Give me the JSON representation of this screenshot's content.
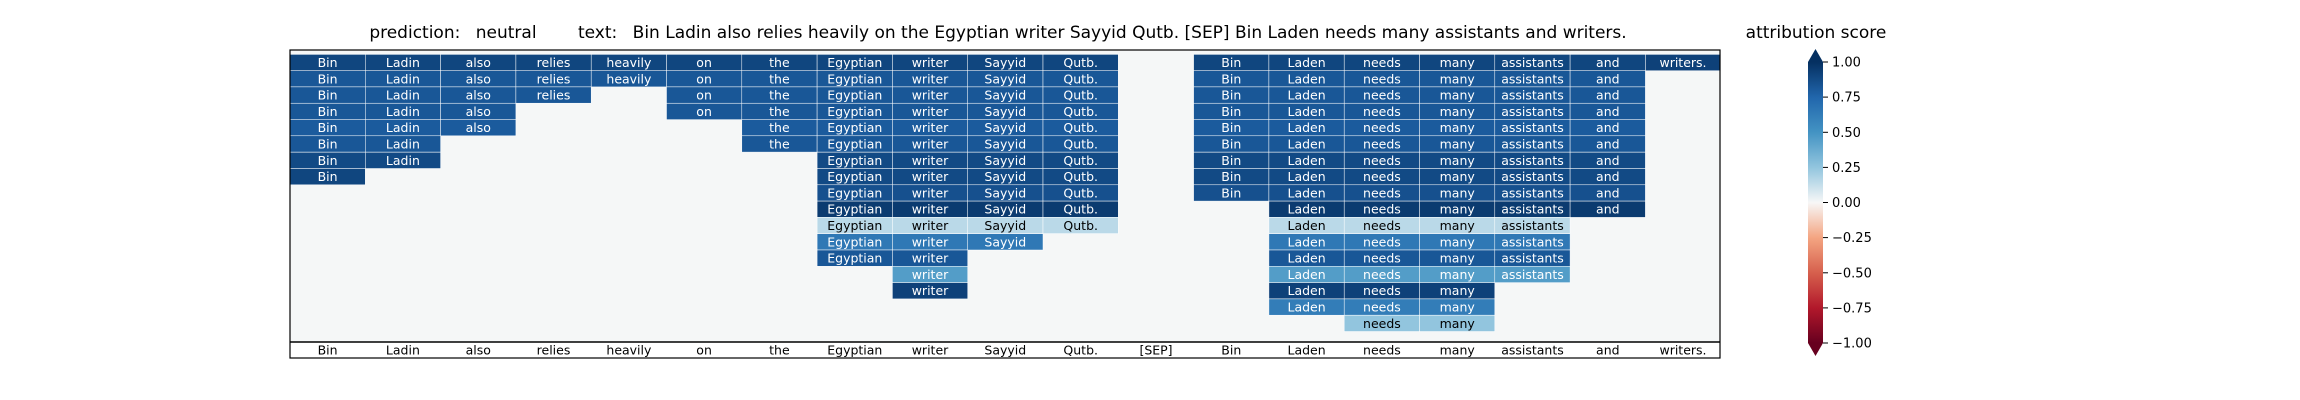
{
  "chart_data": {
    "type": "heatmap",
    "title": {
      "prediction_label": "prediction:",
      "prediction": "neutral",
      "text_label": "text:",
      "text": "Bin Ladin also relies heavily on the Egyptian writer Sayyid Qutb. [SEP] Bin Laden needs many assistants and writers."
    },
    "tokens": [
      "Bin",
      "Ladin",
      "also",
      "relies",
      "heavily",
      "on",
      "the",
      "Egyptian",
      "writer",
      "Sayyid",
      "Qutb.",
      "[SEP]",
      "Bin",
      "Laden",
      "needs",
      "many",
      "assistants",
      "and",
      "writers."
    ],
    "rows": [
      {
        "cells": [
          [
            0,
            0.9
          ],
          [
            1,
            0.9
          ],
          [
            2,
            0.9
          ],
          [
            3,
            0.9
          ],
          [
            4,
            0.9
          ],
          [
            5,
            0.9
          ],
          [
            6,
            0.9
          ],
          [
            7,
            0.9
          ],
          [
            8,
            0.9
          ],
          [
            9,
            0.9
          ],
          [
            10,
            0.9
          ],
          [
            12,
            0.9
          ],
          [
            13,
            0.9
          ],
          [
            14,
            0.9
          ],
          [
            15,
            0.9
          ],
          [
            16,
            0.9
          ],
          [
            17,
            0.9
          ],
          [
            18,
            0.92
          ]
        ]
      },
      {
        "cells": [
          [
            0,
            0.82
          ],
          [
            1,
            0.82
          ],
          [
            2,
            0.82
          ],
          [
            3,
            0.82
          ],
          [
            4,
            0.82
          ],
          [
            5,
            0.82
          ],
          [
            6,
            0.82
          ],
          [
            7,
            0.82
          ],
          [
            8,
            0.82
          ],
          [
            9,
            0.82
          ],
          [
            10,
            0.82
          ],
          [
            12,
            0.82
          ],
          [
            13,
            0.82
          ],
          [
            14,
            0.82
          ],
          [
            15,
            0.82
          ],
          [
            16,
            0.82
          ],
          [
            17,
            0.82
          ]
        ]
      },
      {
        "cells": [
          [
            0,
            0.82
          ],
          [
            1,
            0.82
          ],
          [
            2,
            0.82
          ],
          [
            3,
            0.82
          ],
          [
            5,
            0.82
          ],
          [
            6,
            0.82
          ],
          [
            7,
            0.82
          ],
          [
            8,
            0.82
          ],
          [
            9,
            0.82
          ],
          [
            10,
            0.82
          ],
          [
            12,
            0.82
          ],
          [
            13,
            0.82
          ],
          [
            14,
            0.82
          ],
          [
            15,
            0.82
          ],
          [
            16,
            0.82
          ],
          [
            17,
            0.82
          ]
        ]
      },
      {
        "cells": [
          [
            0,
            0.82
          ],
          [
            1,
            0.82
          ],
          [
            2,
            0.82
          ],
          [
            5,
            0.82
          ],
          [
            6,
            0.82
          ],
          [
            7,
            0.82
          ],
          [
            8,
            0.82
          ],
          [
            9,
            0.82
          ],
          [
            10,
            0.82
          ],
          [
            12,
            0.82
          ],
          [
            13,
            0.82
          ],
          [
            14,
            0.82
          ],
          [
            15,
            0.82
          ],
          [
            16,
            0.82
          ],
          [
            17,
            0.82
          ]
        ]
      },
      {
        "cells": [
          [
            0,
            0.8
          ],
          [
            1,
            0.8
          ],
          [
            2,
            0.8
          ],
          [
            6,
            0.8
          ],
          [
            7,
            0.8
          ],
          [
            8,
            0.8
          ],
          [
            9,
            0.8
          ],
          [
            10,
            0.8
          ],
          [
            12,
            0.8
          ],
          [
            13,
            0.8
          ],
          [
            14,
            0.8
          ],
          [
            15,
            0.8
          ],
          [
            16,
            0.8
          ],
          [
            17,
            0.8
          ]
        ]
      },
      {
        "cells": [
          [
            0,
            0.82
          ],
          [
            1,
            0.82
          ],
          [
            6,
            0.82
          ],
          [
            7,
            0.82
          ],
          [
            8,
            0.82
          ],
          [
            9,
            0.82
          ],
          [
            10,
            0.82
          ],
          [
            12,
            0.82
          ],
          [
            13,
            0.82
          ],
          [
            14,
            0.82
          ],
          [
            15,
            0.82
          ],
          [
            16,
            0.82
          ],
          [
            17,
            0.82
          ]
        ]
      },
      {
        "cells": [
          [
            0,
            0.88
          ],
          [
            1,
            0.88
          ],
          [
            7,
            0.88
          ],
          [
            8,
            0.88
          ],
          [
            9,
            0.88
          ],
          [
            10,
            0.88
          ],
          [
            12,
            0.88
          ],
          [
            13,
            0.88
          ],
          [
            14,
            0.88
          ],
          [
            15,
            0.88
          ],
          [
            16,
            0.88
          ],
          [
            17,
            0.88
          ]
        ]
      },
      {
        "cells": [
          [
            0,
            0.9
          ],
          [
            7,
            0.88
          ],
          [
            8,
            0.88
          ],
          [
            9,
            0.88
          ],
          [
            10,
            0.88
          ],
          [
            12,
            0.88
          ],
          [
            13,
            0.88
          ],
          [
            14,
            0.88
          ],
          [
            15,
            0.88
          ],
          [
            16,
            0.88
          ],
          [
            17,
            0.88
          ]
        ]
      },
      {
        "cells": [
          [
            7,
            0.85
          ],
          [
            8,
            0.85
          ],
          [
            9,
            0.85
          ],
          [
            10,
            0.85
          ],
          [
            12,
            0.85
          ],
          [
            13,
            0.85
          ],
          [
            14,
            0.85
          ],
          [
            15,
            0.85
          ],
          [
            16,
            0.85
          ],
          [
            17,
            0.85
          ]
        ]
      },
      {
        "cells": [
          [
            7,
            0.95
          ],
          [
            8,
            0.95
          ],
          [
            9,
            0.95
          ],
          [
            10,
            0.95
          ],
          [
            13,
            0.95
          ],
          [
            14,
            0.95
          ],
          [
            15,
            0.95
          ],
          [
            16,
            0.95
          ],
          [
            17,
            0.95
          ]
        ]
      },
      {
        "cells": [
          [
            7,
            0.15
          ],
          [
            8,
            0.15
          ],
          [
            9,
            0.15
          ],
          [
            10,
            0.15
          ],
          [
            13,
            0.15
          ],
          [
            14,
            0.15
          ],
          [
            15,
            0.15
          ],
          [
            16,
            0.15
          ]
        ]
      },
      {
        "cells": [
          [
            7,
            0.65
          ],
          [
            8,
            0.65
          ],
          [
            9,
            0.65
          ],
          [
            13,
            0.65
          ],
          [
            14,
            0.65
          ],
          [
            15,
            0.65
          ],
          [
            16,
            0.65
          ]
        ]
      },
      {
        "cells": [
          [
            7,
            0.82
          ],
          [
            8,
            0.82
          ],
          [
            13,
            0.82
          ],
          [
            14,
            0.82
          ],
          [
            15,
            0.82
          ],
          [
            16,
            0.82
          ]
        ]
      },
      {
        "cells": [
          [
            8,
            0.45
          ],
          [
            13,
            0.45
          ],
          [
            14,
            0.45
          ],
          [
            15,
            0.45
          ],
          [
            16,
            0.45
          ]
        ]
      },
      {
        "cells": [
          [
            8,
            0.92
          ],
          [
            13,
            0.92
          ],
          [
            14,
            0.92
          ],
          [
            15,
            0.92
          ]
        ]
      },
      {
        "cells": [
          [
            13,
            0.62
          ],
          [
            14,
            0.62
          ],
          [
            15,
            0.62
          ]
        ]
      },
      {
        "cells": [
          [
            14,
            0.25
          ],
          [
            15,
            0.25
          ]
        ]
      }
    ],
    "colorbar": {
      "label": "attribution score",
      "range": [
        -1.0,
        1.0
      ],
      "ticks": [
        "1.00",
        "0.75",
        "0.50",
        "0.25",
        "0.00",
        "−0.25",
        "−0.50",
        "−0.75",
        "−1.00"
      ],
      "colormap": "RdBu",
      "extend": "both"
    },
    "colors": {
      "empty_cell": "#f5f7f7",
      "text_dark": "#000000",
      "text_light": "#ffffff"
    }
  }
}
